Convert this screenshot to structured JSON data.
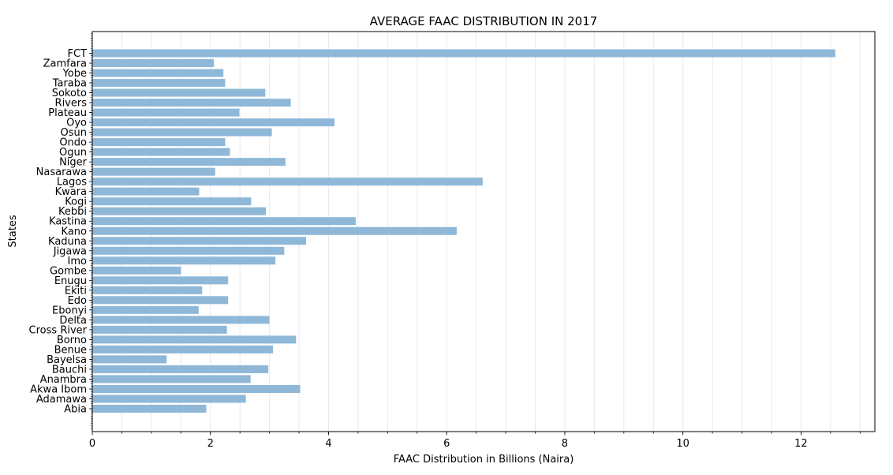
{
  "chart_data": {
    "type": "bar",
    "orientation": "horizontal",
    "title": "AVERAGE FAAC DISTRIBUTION IN 2017",
    "xlabel": "FAAC Distribution in Billions (Naira)",
    "ylabel": "States",
    "xlim": [
      0,
      13.25
    ],
    "xticks": [
      0,
      2,
      4,
      6,
      8,
      10,
      12
    ],
    "grid": "vertical minor",
    "bar_color": "#8fb8d8",
    "grid_color": "#e6e9f5",
    "categories": [
      "Abia",
      "Adamawa",
      "Akwa Ibom",
      "Anambra",
      "Bauchi",
      "Bayelsa",
      "Benue",
      "Borno",
      "Cross River",
      "Delta",
      "Ebonyi",
      "Edo",
      "Ekiti",
      "Enugu",
      "Gombe",
      "Imo",
      "Jigawa",
      "Kaduna",
      "Kano",
      "Kastina",
      "Kebbi",
      "Kogi",
      "Kwara",
      "Lagos",
      "Nasarawa",
      "Niger",
      "Ogun",
      "Ondo",
      "Osun",
      "Oyo",
      "Plateau",
      "Rivers",
      "Sokoto",
      "Taraba",
      "Yobe",
      "Zamfara",
      "FCT"
    ],
    "values": [
      1.93,
      2.6,
      3.52,
      2.68,
      2.98,
      1.26,
      3.06,
      3.45,
      2.28,
      3.0,
      1.8,
      2.3,
      1.86,
      2.3,
      1.5,
      3.1,
      3.25,
      3.62,
      6.17,
      4.46,
      2.94,
      2.69,
      1.81,
      6.61,
      2.08,
      3.27,
      2.33,
      2.25,
      3.04,
      4.1,
      2.49,
      3.36,
      2.93,
      2.25,
      2.22,
      2.06,
      12.58
    ]
  }
}
